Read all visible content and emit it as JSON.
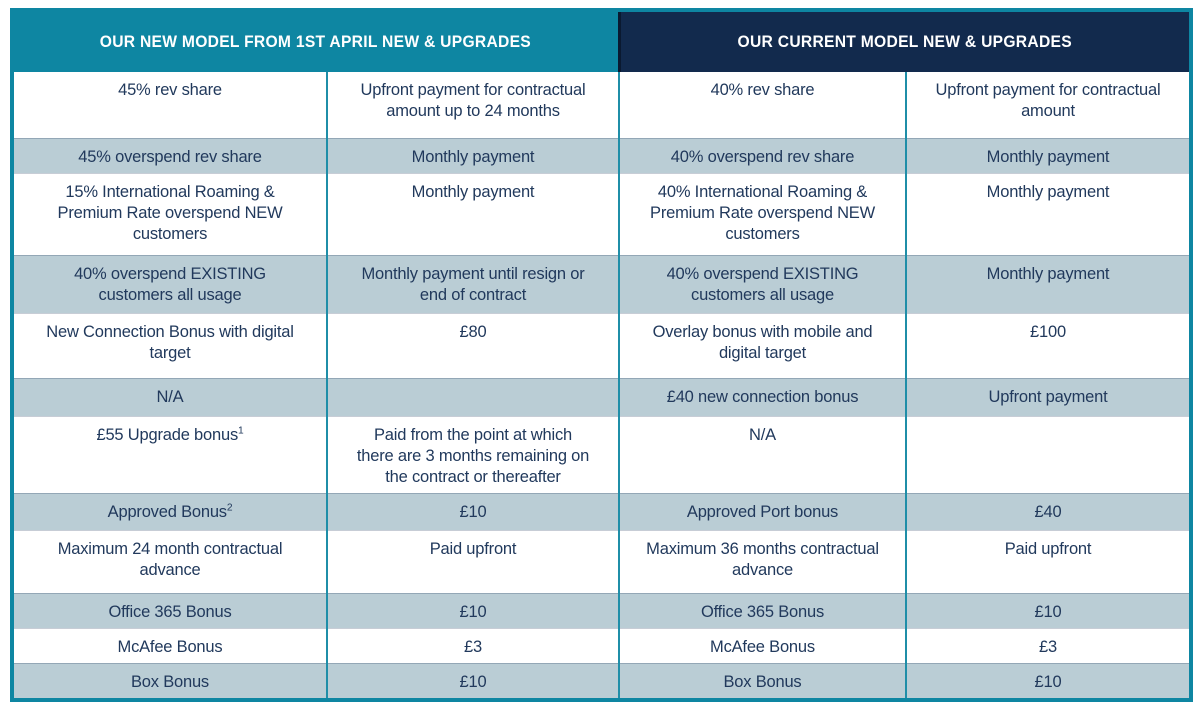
{
  "colors": {
    "teal_header": "#0E86A2",
    "navy_header": "#122A4D",
    "shaded_row": "#BACDD5",
    "text": "#21395C",
    "grid_line": "#1F8EA8"
  },
  "table": {
    "headers": [
      {
        "label": "OUR NEW MODEL FROM 1ST APRIL NEW & UPGRADES"
      },
      {
        "label": "OUR CURRENT MODEL NEW & UPGRADES"
      }
    ],
    "rows": [
      {
        "shaded": false,
        "cells": [
          {
            "text": "45% rev share"
          },
          {
            "text": "Upfront payment for contractual\namount up to 24 months"
          },
          {
            "text": "40% rev share"
          },
          {
            "text": "Upfront payment for contractual\namount"
          }
        ]
      },
      {
        "shaded": true,
        "cells": [
          {
            "text": "45% overspend rev share"
          },
          {
            "text": "Monthly payment"
          },
          {
            "text": "40% overspend rev share"
          },
          {
            "text": "Monthly payment"
          }
        ]
      },
      {
        "shaded": false,
        "cells": [
          {
            "text": "15% International Roaming &\nPremium Rate overspend NEW\ncustomers"
          },
          {
            "text": "Monthly payment"
          },
          {
            "text": "40% International Roaming &\nPremium Rate overspend NEW\ncustomers"
          },
          {
            "text": "Monthly payment"
          }
        ]
      },
      {
        "shaded": true,
        "cells": [
          {
            "text": "40% overspend EXISTING\ncustomers all usage"
          },
          {
            "text": "Monthly payment until resign or\nend of contract"
          },
          {
            "text": "40% overspend EXISTING\ncustomers all usage"
          },
          {
            "text": "Monthly payment"
          }
        ]
      },
      {
        "shaded": false,
        "cells": [
          {
            "text": "New Connection Bonus with digital\ntarget"
          },
          {
            "text": "£80"
          },
          {
            "text": "Overlay bonus with mobile and\ndigital target"
          },
          {
            "text": "£100"
          }
        ]
      },
      {
        "shaded": true,
        "cells": [
          {
            "text": "N/A"
          },
          {
            "text": ""
          },
          {
            "text": "£40 new connection bonus"
          },
          {
            "text": "Upfront payment"
          }
        ]
      },
      {
        "shaded": false,
        "cells": [
          {
            "text": "£55 Upgrade bonus",
            "sup": "1"
          },
          {
            "text": "Paid from the point at which\nthere are 3 months remaining on\nthe contract or thereafter"
          },
          {
            "text": "N/A"
          },
          {
            "text": ""
          }
        ]
      },
      {
        "shaded": true,
        "cells": [
          {
            "text": "Approved Bonus",
            "sup": "2"
          },
          {
            "text": "£10"
          },
          {
            "text": "Approved Port bonus"
          },
          {
            "text": "£40"
          }
        ]
      },
      {
        "shaded": false,
        "cells": [
          {
            "text": "Maximum 24 month contractual\nadvance"
          },
          {
            "text": "Paid upfront"
          },
          {
            "text": "Maximum 36 months contractual\nadvance"
          },
          {
            "text": "Paid upfront"
          }
        ]
      },
      {
        "shaded": true,
        "cells": [
          {
            "text": "Office 365 Bonus"
          },
          {
            "text": "£10"
          },
          {
            "text": "Office 365 Bonus"
          },
          {
            "text": "£10"
          }
        ]
      },
      {
        "shaded": false,
        "cells": [
          {
            "text": "McAfee Bonus"
          },
          {
            "text": "£3"
          },
          {
            "text": "McAfee Bonus"
          },
          {
            "text": "£3"
          }
        ]
      },
      {
        "shaded": true,
        "cells": [
          {
            "text": "Box Bonus"
          },
          {
            "text": "£10"
          },
          {
            "text": "Box Bonus"
          },
          {
            "text": "£10"
          }
        ]
      }
    ]
  }
}
